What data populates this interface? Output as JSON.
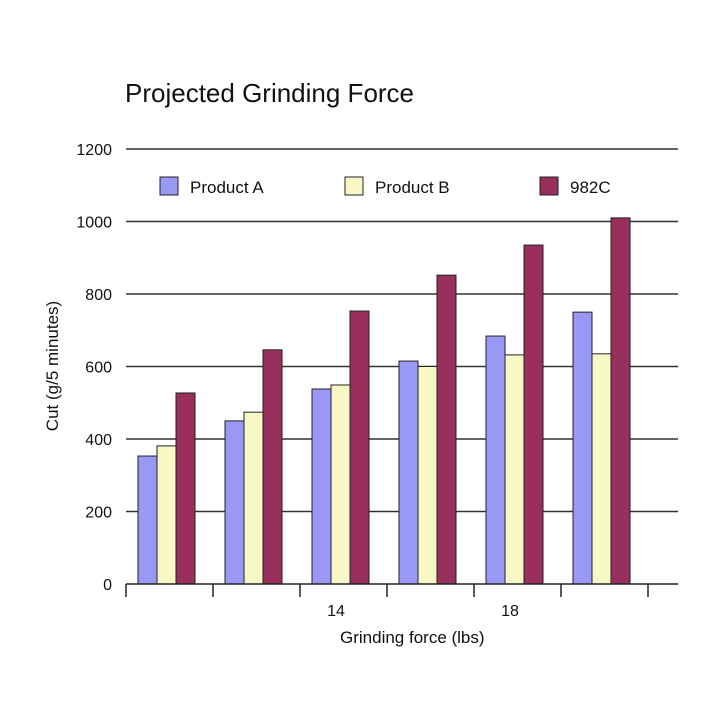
{
  "chart_data": {
    "type": "bar",
    "title": "Projected Grinding Force",
    "xlabel": "Grinding force (lbs)",
    "ylabel": "Cut (g/5 minutes)",
    "categories": [
      "",
      "",
      "14",
      "",
      "18",
      ""
    ],
    "ylim": [
      0,
      1200
    ],
    "yticks": [
      0,
      200,
      400,
      600,
      800,
      1000,
      1200
    ],
    "grid": true,
    "legend_position": "top",
    "series": [
      {
        "name": "Product A",
        "color": "#9999f5",
        "values": [
          353,
          450,
          538,
          615,
          684,
          750
        ]
      },
      {
        "name": "Product B",
        "color": "#f8f8c6",
        "values": [
          381,
          474,
          549,
          600,
          632,
          635
        ]
      },
      {
        "name": "982C",
        "color": "#982f5c",
        "values": [
          527,
          646,
          753,
          852,
          935,
          1010
        ]
      }
    ]
  }
}
